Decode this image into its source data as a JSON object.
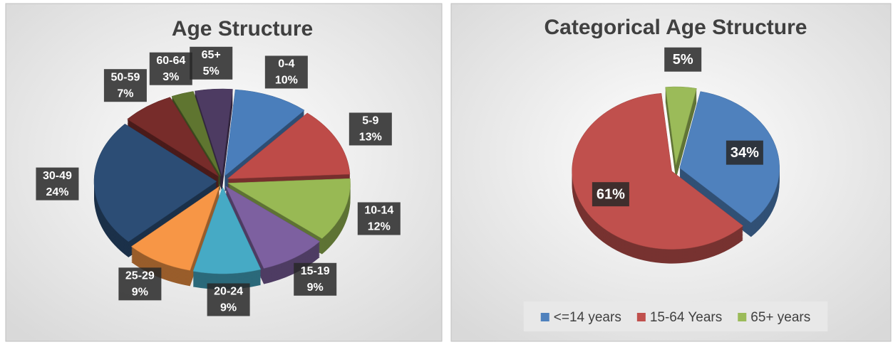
{
  "chart_data": [
    {
      "type": "pie",
      "title": "Age Structure",
      "categories": [
        "0-4",
        "5-9",
        "10-14",
        "15-19",
        "20-24",
        "25-29",
        "30-49",
        "50-59",
        "60-64",
        "65+"
      ],
      "values": [
        10,
        13,
        12,
        9,
        9,
        9,
        24,
        7,
        3,
        5
      ],
      "value_labels": [
        "10%",
        "13%",
        "12%",
        "9%",
        "9%",
        "9%",
        "24%",
        "7%",
        "3%",
        "5%"
      ],
      "colors": [
        "#4a7ebb",
        "#be4b48",
        "#98b954",
        "#7d60a0",
        "#46aac5",
        "#f79646",
        "#2c4d75",
        "#772c2a",
        "#5f7530",
        "#4d3b62"
      ],
      "data_labels": "category_and_value",
      "legend": "none"
    },
    {
      "type": "pie",
      "title": "Categorical Age Structure",
      "categories": [
        "<=14 years",
        "15-64 Years",
        "65+ years"
      ],
      "values": [
        34,
        61,
        5
      ],
      "value_labels": [
        "34%",
        "61%",
        "5%"
      ],
      "colors": [
        "#4f81bd",
        "#c0504d",
        "#9bbb59"
      ],
      "data_labels": "value",
      "legend": "bottom"
    }
  ]
}
